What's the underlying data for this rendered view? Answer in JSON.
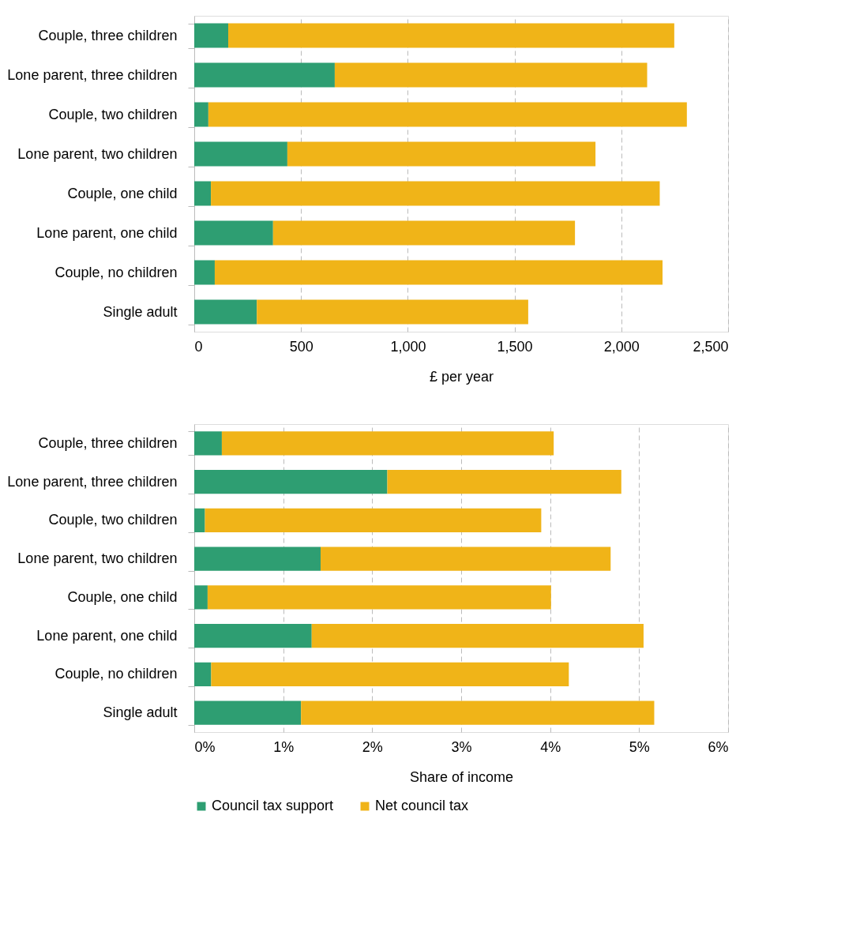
{
  "chart_data": [
    {
      "type": "bar",
      "orientation": "horizontal",
      "stacked": true,
      "xlabel": "£ per year",
      "categories": [
        "Couple, three children",
        "Lone parent, three children",
        "Couple, two children",
        "Lone parent, two children",
        "Couple, one child",
        "Lone parent, one child",
        "Couple, no children",
        "Single adult"
      ],
      "series": [
        {
          "name": "Council tax support",
          "color": "#2e9e72",
          "values": [
            159,
            658,
            66,
            436,
            78,
            369,
            96,
            293
          ]
        },
        {
          "name": "Net council tax",
          "color": "#f0b418",
          "values": [
            2089,
            1463,
            2241,
            1443,
            2102,
            1414,
            2097,
            1271
          ]
        }
      ],
      "xlim": [
        0,
        2500
      ],
      "xticks": [
        0,
        500,
        {
          "value": 1000,
          "label": "1,000"
        },
        {
          "value": 1500,
          "label": "1,500"
        },
        {
          "value": 2000,
          "label": "2,000"
        },
        {
          "value": 2500,
          "label": "2,500"
        }
      ],
      "grid": "x",
      "legend": "bottom"
    },
    {
      "type": "bar",
      "orientation": "horizontal",
      "stacked": true,
      "xlabel": "Share of income",
      "categories": [
        "Couple, three children",
        "Lone parent, three children",
        "Couple, two children",
        "Lone parent, two children",
        "Couple, one child",
        "Lone parent, one child",
        "Couple, no children",
        "Single adult"
      ],
      "series": [
        {
          "name": "Council tax support",
          "color": "#2e9e72",
          "values": [
            0.31,
            2.17,
            0.12,
            1.42,
            0.15,
            1.32,
            0.19,
            1.2
          ]
        },
        {
          "name": "Net council tax",
          "color": "#f0b418",
          "values": [
            3.73,
            2.63,
            3.78,
            3.26,
            3.86,
            3.73,
            4.02,
            3.97
          ]
        }
      ],
      "xlim": [
        0,
        6
      ],
      "xticks": [
        {
          "value": 0,
          "label": "0%"
        },
        {
          "value": 1,
          "label": "1%"
        },
        {
          "value": 2,
          "label": "2%"
        },
        {
          "value": 3,
          "label": "3%"
        },
        {
          "value": 4,
          "label": "4%"
        },
        {
          "value": 5,
          "label": "5%"
        },
        {
          "value": 6,
          "label": "6%"
        }
      ],
      "grid": "x",
      "legend": "bottom"
    }
  ]
}
